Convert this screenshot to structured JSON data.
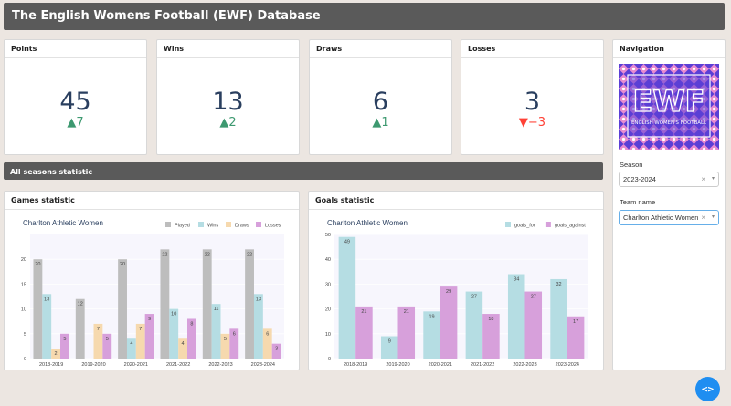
{
  "header": {
    "title": "The English Womens Football (EWF) Database"
  },
  "kpis": [
    {
      "title": "Points",
      "value": "45",
      "delta": "▲7",
      "direction": "up"
    },
    {
      "title": "Wins",
      "value": "13",
      "delta": "▲2",
      "direction": "up"
    },
    {
      "title": "Draws",
      "value": "6",
      "delta": "▲1",
      "direction": "up"
    },
    {
      "title": "Losses",
      "value": "3",
      "delta": "▼−3",
      "direction": "down"
    }
  ],
  "section": {
    "title": "All seasons statistic"
  },
  "games_card": {
    "title": "Games statistic"
  },
  "goals_card": {
    "title": "Goals statistic"
  },
  "navigation": {
    "title": "Navigation",
    "logo_main": "EWF",
    "logo_sub": "ENGLISH WOMEN'S FOOTBALL",
    "season_label": "Season",
    "season_value": "2023-2024",
    "team_label": "Team name",
    "team_value": "Charlton Athletic Women",
    "clear_glyph": "×",
    "caret_glyph": "▾"
  },
  "fab": {
    "label": "<>",
    "icon": "code-icon"
  },
  "chart_data": [
    {
      "type": "bar",
      "title": "Charlton Athletic Women",
      "categories": [
        "2018-2019",
        "2019-2020",
        "2020-2021",
        "2021-2022",
        "2022-2023",
        "2023-2024"
      ],
      "ylim": [
        0,
        25
      ],
      "yticks": [
        0,
        5,
        10,
        15,
        20
      ],
      "legend": "top-right",
      "series": [
        {
          "name": "Played",
          "color": "#bdbdbd",
          "values": [
            20,
            12,
            20,
            22,
            22,
            22
          ]
        },
        {
          "name": "Wins",
          "color": "#b5dde3",
          "values": [
            13,
            0,
            4,
            10,
            11,
            13
          ]
        },
        {
          "name": "Draws",
          "color": "#f6d9ae",
          "values": [
            2,
            7,
            7,
            4,
            5,
            6
          ]
        },
        {
          "name": "Losses",
          "color": "#d7a0db",
          "values": [
            5,
            5,
            9,
            8,
            6,
            3
          ]
        }
      ]
    },
    {
      "type": "bar",
      "title": "Charlton Athletic Women",
      "categories": [
        "2018-2019",
        "2019-2020",
        "2020-2021",
        "2021-2022",
        "2022-2023",
        "2023-2024"
      ],
      "ylim": [
        0,
        50
      ],
      "yticks": [
        0,
        10,
        20,
        30,
        40,
        50
      ],
      "legend": "top-right",
      "series": [
        {
          "name": "goals_for",
          "color": "#b5dde3",
          "values": [
            49,
            9,
            19,
            27,
            34,
            32
          ]
        },
        {
          "name": "goals_against",
          "color": "#d7a0db",
          "values": [
            21,
            21,
            29,
            18,
            27,
            17
          ]
        }
      ]
    }
  ]
}
